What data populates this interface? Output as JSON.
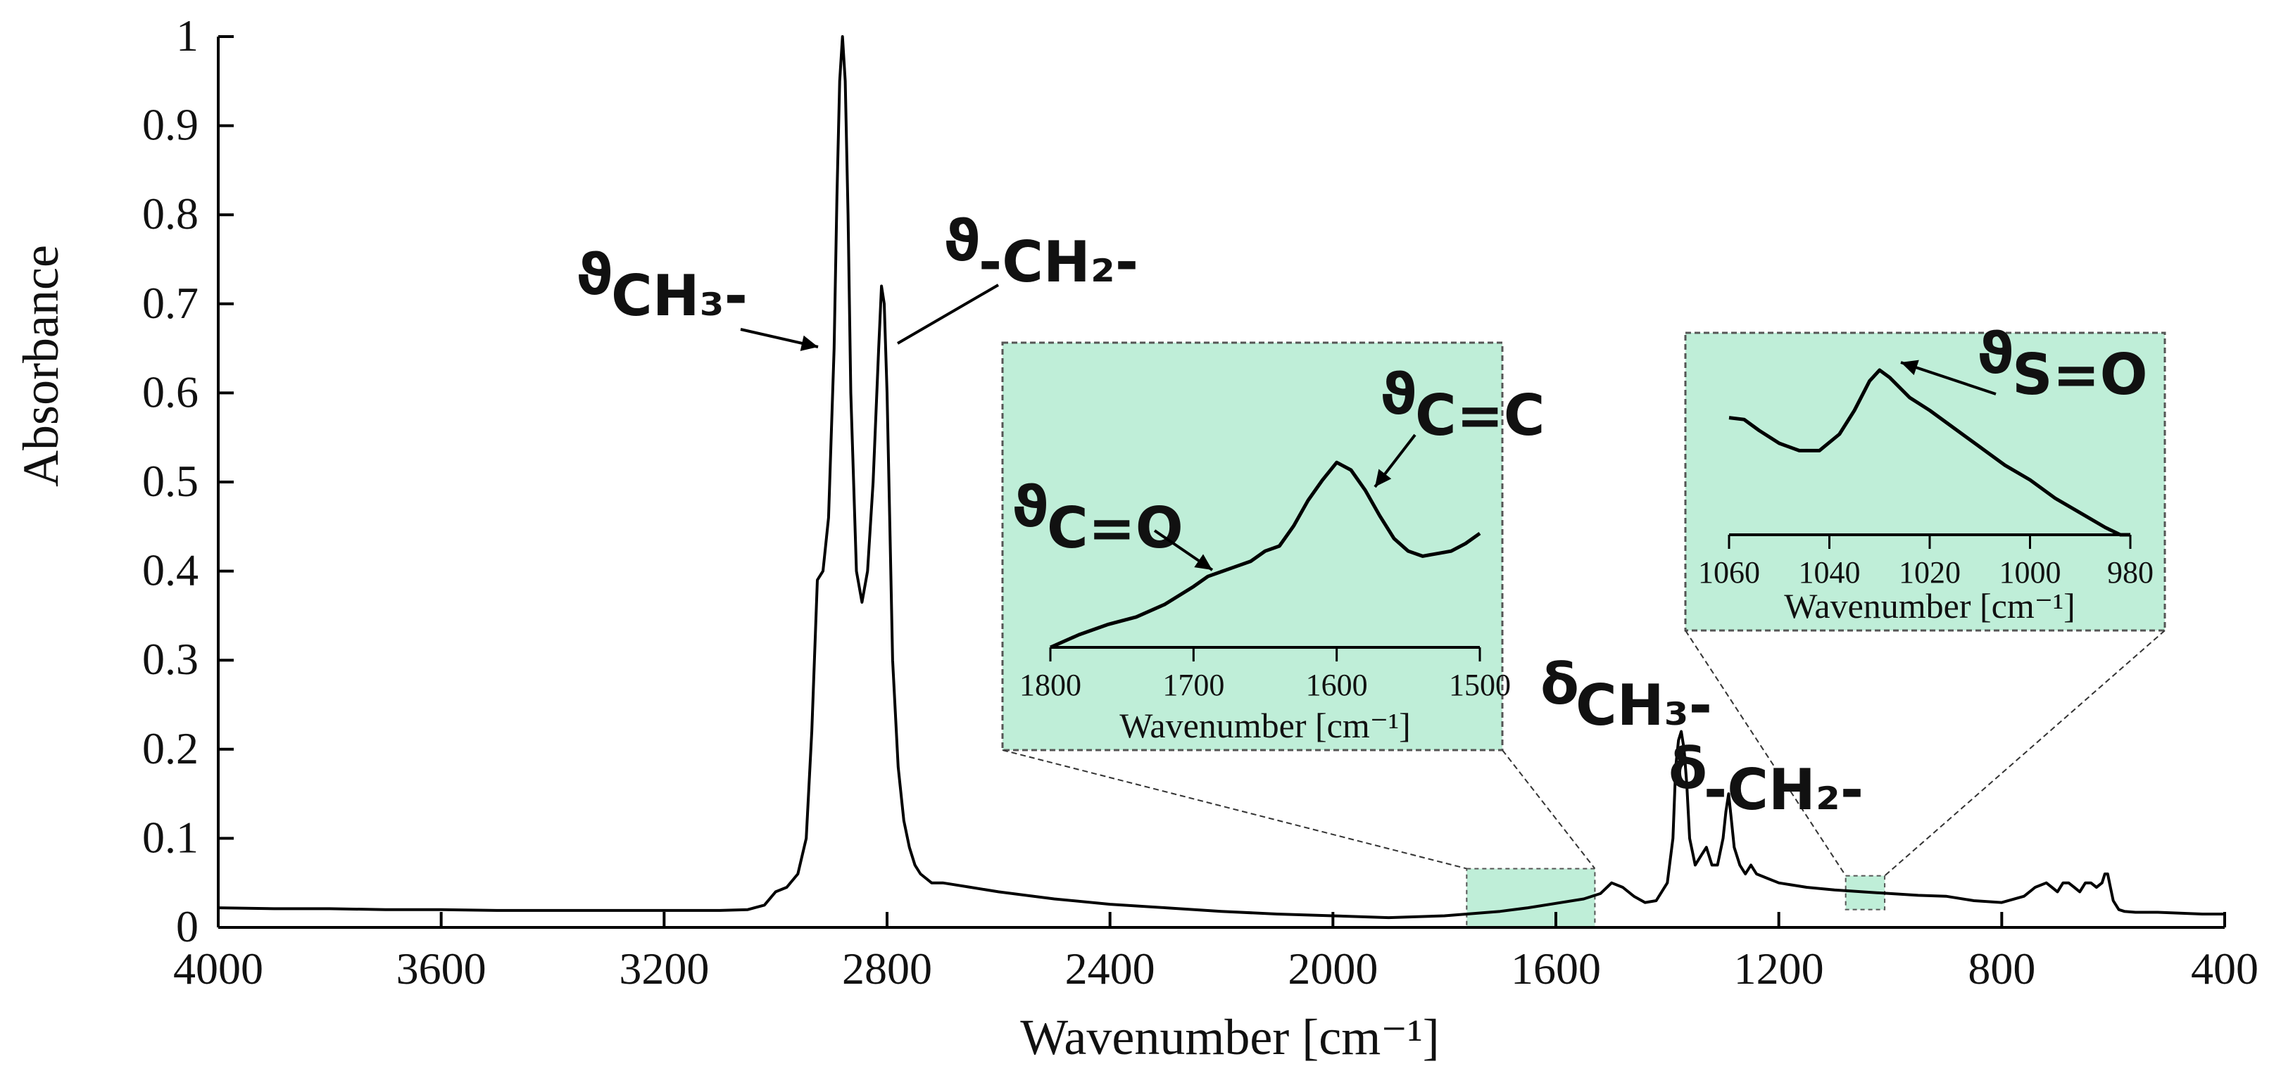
{
  "chart_data": {
    "type": "line",
    "xlabel": "Wavenumber [cm⁻¹]",
    "ylabel": "Absorbance",
    "xlim": [
      4000,
      400
    ],
    "ylim": [
      0,
      1
    ],
    "x_reversed": true,
    "xticks": [
      "4000",
      "3600",
      "3200",
      "2800",
      "2400",
      "2000",
      "1600",
      "1200",
      "800",
      "400"
    ],
    "yticks": [
      "0",
      "0.1",
      "0.2",
      "0.3",
      "0.4",
      "0.5",
      "0.6",
      "0.7",
      "0.8",
      "0.9",
      "1"
    ],
    "grid": false,
    "line_color": "#000000",
    "highlight_color": "#bfeed8",
    "series": [
      {
        "x": [
          4000,
          3900,
          3800,
          3700,
          3600,
          3500,
          3400,
          3300,
          3200,
          3100,
          3050,
          3020,
          3000,
          2980,
          2960,
          2945,
          2935,
          2925,
          2915,
          2905,
          2895,
          2890,
          2885,
          2880,
          2875,
          2870,
          2865,
          2860,
          2855,
          2845,
          2835,
          2825,
          2815,
          2810,
          2805,
          2800,
          2795,
          2790,
          2780,
          2770,
          2760,
          2750,
          2740,
          2720,
          2700,
          2680,
          2650,
          2600,
          2500,
          2400,
          2300,
          2200,
          2100,
          2000,
          1900,
          1800,
          1700,
          1650,
          1600,
          1550,
          1520,
          1500,
          1480,
          1460,
          1440,
          1420,
          1400,
          1390,
          1385,
          1380,
          1375,
          1370,
          1365,
          1360,
          1350,
          1340,
          1330,
          1320,
          1310,
          1300,
          1295,
          1290,
          1285,
          1280,
          1270,
          1260,
          1250,
          1240,
          1220,
          1200,
          1150,
          1100,
          1050,
          1000,
          950,
          900,
          850,
          800,
          760,
          740,
          720,
          710,
          700,
          690,
          680,
          670,
          660,
          650,
          640,
          630,
          620,
          615,
          610,
          605,
          600,
          590,
          580,
          560,
          520,
          480,
          440,
          400
        ],
        "y": [
          0.022,
          0.021,
          0.021,
          0.02,
          0.02,
          0.019,
          0.019,
          0.019,
          0.019,
          0.019,
          0.02,
          0.025,
          0.04,
          0.045,
          0.06,
          0.1,
          0.22,
          0.39,
          0.4,
          0.46,
          0.65,
          0.82,
          0.95,
          1.0,
          0.95,
          0.8,
          0.6,
          0.5,
          0.4,
          0.365,
          0.4,
          0.5,
          0.65,
          0.72,
          0.7,
          0.6,
          0.45,
          0.3,
          0.18,
          0.12,
          0.09,
          0.07,
          0.06,
          0.05,
          0.05,
          0.048,
          0.045,
          0.04,
          0.032,
          0.026,
          0.022,
          0.018,
          0.015,
          0.013,
          0.011,
          0.013,
          0.018,
          0.022,
          0.027,
          0.032,
          0.038,
          0.05,
          0.045,
          0.035,
          0.028,
          0.03,
          0.05,
          0.1,
          0.18,
          0.21,
          0.22,
          0.2,
          0.16,
          0.1,
          0.07,
          0.08,
          0.09,
          0.07,
          0.07,
          0.1,
          0.13,
          0.15,
          0.12,
          0.09,
          0.07,
          0.06,
          0.07,
          0.06,
          0.055,
          0.05,
          0.045,
          0.042,
          0.04,
          0.038,
          0.036,
          0.035,
          0.03,
          0.028,
          0.035,
          0.045,
          0.05,
          0.045,
          0.04,
          0.05,
          0.05,
          0.045,
          0.04,
          0.05,
          0.05,
          0.045,
          0.05,
          0.06,
          0.06,
          0.045,
          0.03,
          0.02,
          0.018,
          0.017,
          0.017,
          0.016,
          0.015,
          0.015
        ]
      }
    ],
    "annotations": [
      {
        "main": "ϑ",
        "sub": "CH₃-",
        "x": 2895,
        "y": 0.66
      },
      {
        "main": "ϑ",
        "sub": "-CH₂-",
        "x": 2810,
        "y": 0.66
      },
      {
        "main": "δ",
        "sub": "CH₃-"
      },
      {
        "main": "δ",
        "sub": "-CH₂-"
      }
    ],
    "highlight_regions": [
      {
        "x": [
          1760,
          1530
        ],
        "y": [
          0,
          0.066
        ]
      },
      {
        "x": [
          1080,
          1010
        ],
        "y": [
          0.02,
          0.058
        ]
      }
    ],
    "insets": [
      {
        "xlim": [
          1800,
          1500
        ],
        "xticks": [
          "1800",
          "1700",
          "1600",
          "1500"
        ],
        "xlabel": "Wavenumber [cm⁻¹]",
        "source_region": 0,
        "x": [
          1800,
          1780,
          1760,
          1740,
          1720,
          1700,
          1690,
          1680,
          1670,
          1660,
          1650,
          1640,
          1630,
          1620,
          1610,
          1600,
          1590,
          1580,
          1570,
          1560,
          1550,
          1540,
          1530,
          1520,
          1510,
          1500
        ],
        "y": [
          0.0,
          0.05,
          0.09,
          0.12,
          0.17,
          0.24,
          0.28,
          0.3,
          0.32,
          0.34,
          0.38,
          0.4,
          0.48,
          0.58,
          0.66,
          0.73,
          0.7,
          0.62,
          0.52,
          0.43,
          0.38,
          0.36,
          0.37,
          0.38,
          0.41,
          0.45
        ],
        "annotations": [
          {
            "main": "ϑ",
            "sub": "C=O",
            "x": 1697
          },
          {
            "main": "ϑ",
            "sub": "C=C",
            "x": 1588
          }
        ]
      },
      {
        "xlim": [
          1060,
          980
        ],
        "xticks": [
          "1060",
          "1040",
          "1020",
          "1000",
          "980"
        ],
        "xlabel": "Wavenumber [cm⁻¹]",
        "source_region": 1,
        "x": [
          1060,
          1057,
          1054,
          1050,
          1046,
          1042,
          1038,
          1035,
          1032,
          1030,
          1028,
          1024,
          1020,
          1015,
          1010,
          1005,
          1000,
          995,
          990,
          985,
          982,
          980
        ],
        "y": [
          0.64,
          0.63,
          0.57,
          0.5,
          0.46,
          0.46,
          0.55,
          0.68,
          0.84,
          0.9,
          0.86,
          0.75,
          0.68,
          0.58,
          0.48,
          0.38,
          0.3,
          0.2,
          0.12,
          0.04,
          0.0,
          0.0
        ],
        "annotations": [
          {
            "main": "ϑ",
            "sub": "S=O",
            "x": 1030
          }
        ]
      }
    ]
  }
}
